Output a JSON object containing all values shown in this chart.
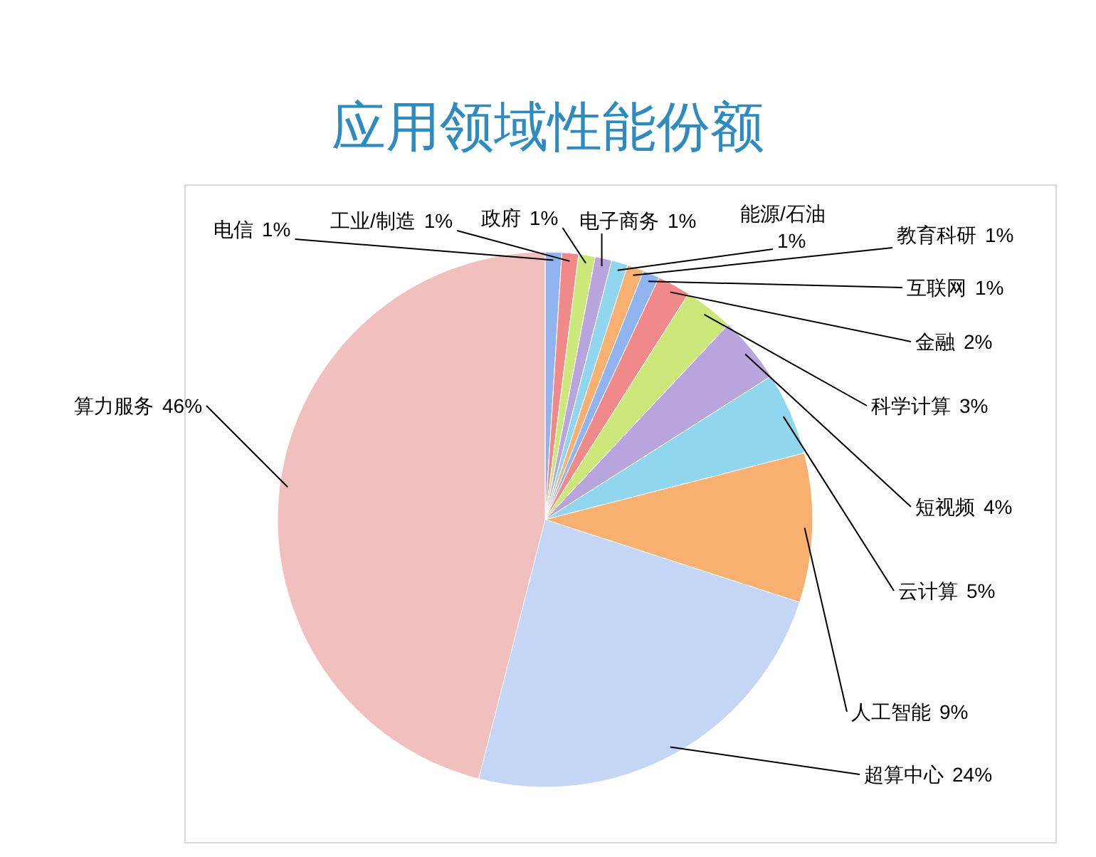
{
  "chart_data": {
    "type": "pie",
    "legend": false,
    "title": "应用领域性能份额",
    "categories": [
      "电信",
      "工业/制造",
      "政府",
      "电子商务",
      "能源/石油",
      "教育科研",
      "互联网",
      "金融",
      "科学计算",
      "短视频",
      "云计算",
      "人工智能",
      "超算中心",
      "算力服务"
    ],
    "values": [
      1,
      1,
      1,
      1,
      1,
      1,
      1,
      2,
      3,
      4,
      5,
      9,
      24,
      46
    ],
    "value_labels": [
      "1%",
      "1%",
      "1%",
      "1%",
      "1%",
      "1%",
      "1%",
      "2%",
      "3%",
      "4%",
      "5%",
      "9%",
      "24%",
      "46%"
    ],
    "colors": [
      "#8fb4f0",
      "#f08a8a",
      "#cde87a",
      "#b9a5de",
      "#8fd6ee",
      "#f8b070",
      "#8fb4f0",
      "#f08a8a",
      "#cde87a",
      "#b9a5de",
      "#8fd6ee",
      "#f8b070",
      "#c5d5f5",
      "#f2bfbf"
    ]
  }
}
